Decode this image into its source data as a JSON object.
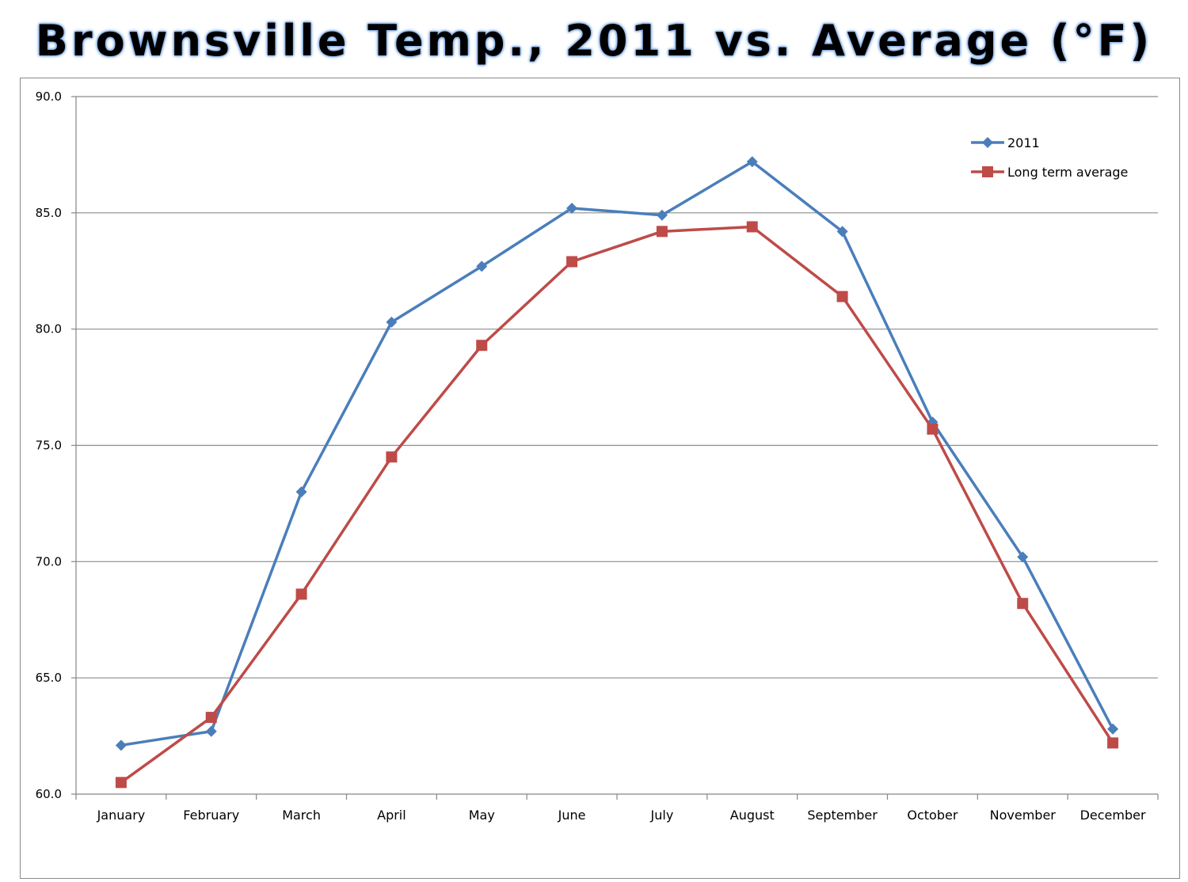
{
  "title": "Brownsville Temp., 2011 vs. Average (°F)",
  "chart_data": {
    "type": "line",
    "title": "Brownsville Temp., 2011 vs. Average (°F)",
    "categories": [
      "January",
      "February",
      "March",
      "April",
      "May",
      "June",
      "July",
      "August",
      "September",
      "October",
      "November",
      "December"
    ],
    "series": [
      {
        "name": "2011",
        "color": "#4a7ebb",
        "marker": "diamond",
        "values": [
          62.1,
          62.7,
          73.0,
          80.3,
          82.7,
          85.2,
          84.9,
          87.2,
          84.2,
          76.0,
          70.2,
          62.8
        ]
      },
      {
        "name": "Long term average",
        "color": "#be4b48",
        "marker": "square",
        "values": [
          60.5,
          63.3,
          68.6,
          74.5,
          79.3,
          82.9,
          84.2,
          84.4,
          81.4,
          75.7,
          68.2,
          62.2
        ]
      }
    ],
    "y_ticks": [
      "60.0",
      "65.0",
      "70.0",
      "75.0",
      "80.0",
      "85.0",
      "90.0"
    ],
    "ylim": [
      60,
      90
    ],
    "grid": true,
    "legend": "top-right"
  }
}
